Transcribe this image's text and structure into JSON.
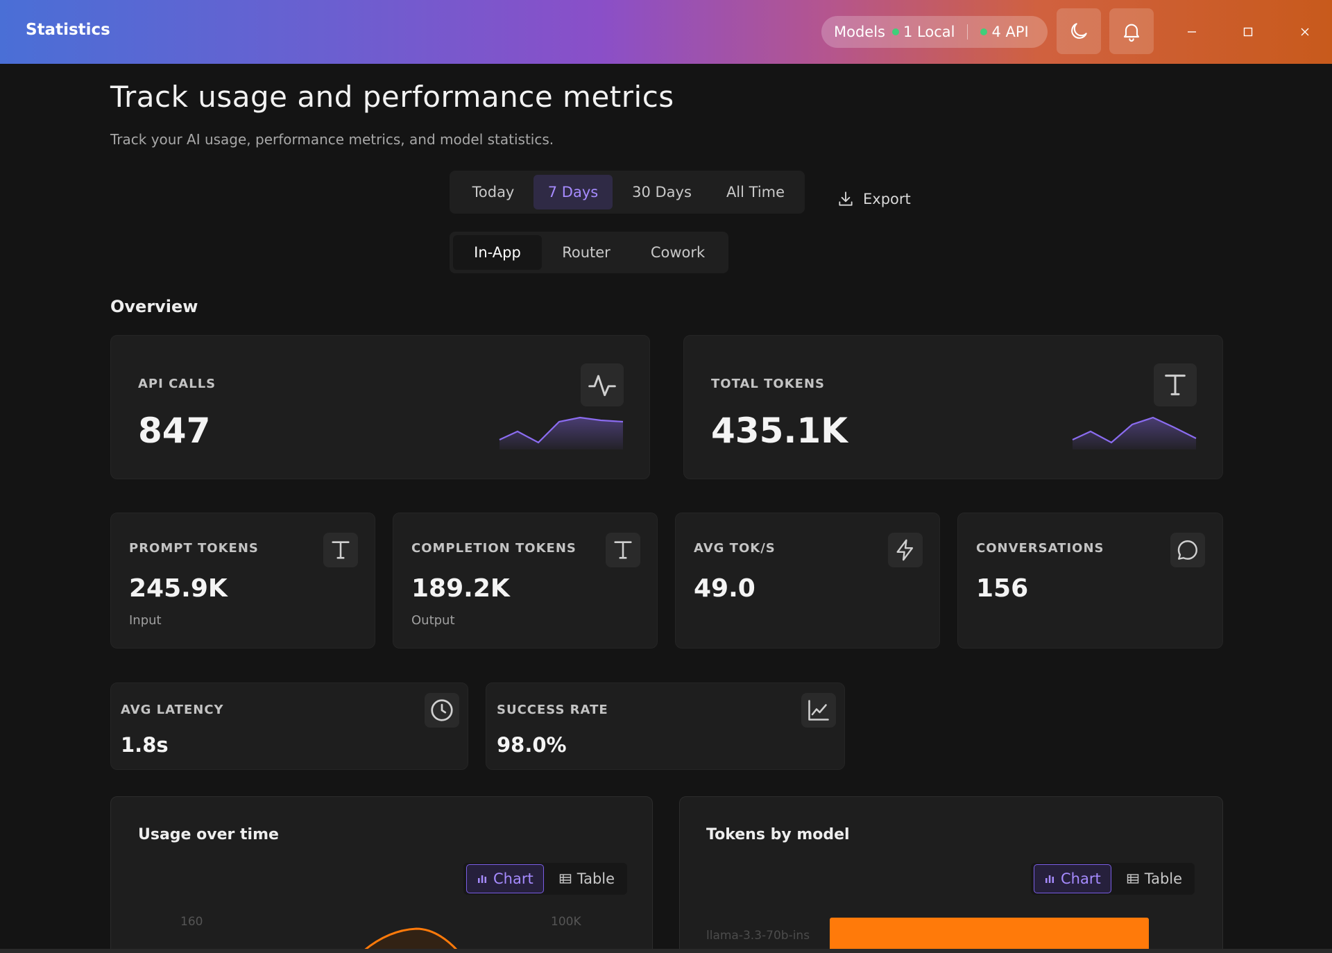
{
  "titlebar": {
    "app_title": "Statistics",
    "models_label": "Models",
    "local_count": "1 Local",
    "api_count": "4 API",
    "status_color": "#3fcf7a"
  },
  "header": {
    "title": "Track usage and performance metrics",
    "subtitle": "Track your AI usage, performance metrics, and model statistics."
  },
  "time_range": {
    "options": [
      "Today",
      "7 Days",
      "30 Days",
      "All Time"
    ],
    "selected": "7 Days"
  },
  "export_label": "Export",
  "source": {
    "options": [
      "In-App",
      "Router",
      "Cowork"
    ],
    "selected": "In-App"
  },
  "overview": {
    "title": "Overview",
    "api_calls": {
      "label": "API CALLS",
      "value": "847",
      "icon": "activity-icon"
    },
    "total_tokens": {
      "label": "TOTAL TOKENS",
      "value": "435.1K",
      "icon": "text-t-icon"
    },
    "prompt_tokens": {
      "label": "PROMPT TOKENS",
      "value": "245.9K",
      "note": "Input",
      "icon": "text-t-icon"
    },
    "completion_tokens": {
      "label": "COMPLETION TOKENS",
      "value": "189.2K",
      "note": "Output",
      "icon": "text-t-icon"
    },
    "avg_tok_s": {
      "label": "AVG TOK/S",
      "value": "49.0",
      "icon": "lightning-icon"
    },
    "conversations": {
      "label": "CONVERSATIONS",
      "value": "156",
      "icon": "chat-bubble-icon"
    },
    "avg_latency": {
      "label": "AVG LATENCY",
      "value": "1.8s",
      "icon": "clock-icon"
    },
    "success_rate": {
      "label": "SUCCESS RATE",
      "value": "98.0%",
      "icon": "chart-line-icon"
    }
  },
  "panels": {
    "usage": {
      "title": "Usage over time",
      "chart_label": "Chart",
      "table_label": "Table",
      "tick_left": "160",
      "tick_right": "100K"
    },
    "tokens_by_model": {
      "title": "Tokens by model",
      "chart_label": "Chart",
      "table_label": "Table",
      "model_label": "llama-3.3-70b-ins"
    }
  },
  "colors": {
    "accent": "#a68bff",
    "spark": "#8b6cf0",
    "orange": "#ff7a0a"
  }
}
